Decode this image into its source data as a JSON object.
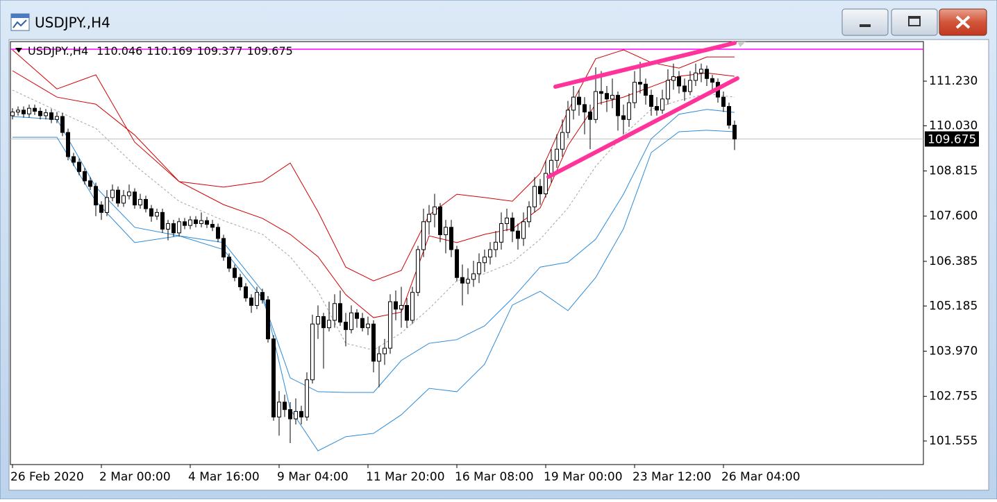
{
  "window": {
    "title": "USDJPY.,H4"
  },
  "chart_data": {
    "type": "candlestick",
    "title": "USDJPY.,H4",
    "ylim": [
      100.921,
      112.293
    ],
    "yticks": [
      {
        "value": 111.23,
        "label": "111.230"
      },
      {
        "value": 110.03,
        "label": "110.030"
      },
      108.815,
      {
        "value": 107.6,
        "label": "107.600"
      },
      106.385,
      105.185,
      {
        "value": 103.97,
        "label": "103.970"
      },
      102.755,
      101.555
    ],
    "xticks": [
      {
        "value": 0,
        "label": "26 Feb 2020"
      },
      {
        "value": 16,
        "label": "2 Mar 00:00"
      },
      {
        "value": 32,
        "label": "4 Mar 16:00"
      },
      {
        "value": 48,
        "label": "9 Mar 04:00"
      },
      {
        "value": 64,
        "label": "11 Mar 20:00"
      },
      {
        "value": 80,
        "label": "16 Mar 08:00"
      },
      {
        "value": 96,
        "label": "19 Mar 00:00"
      },
      {
        "value": 112,
        "label": "23 Mar 12:00"
      },
      {
        "value": 128,
        "label": "26 Mar 04:00"
      }
    ],
    "up_color": "#ffffff",
    "down_color": "#000000",
    "candles": [
      [
        110.3,
        110.5,
        110.2,
        110.4
      ],
      [
        110.4,
        110.55,
        110.3,
        110.45
      ],
      [
        110.45,
        110.55,
        110.25,
        110.35
      ],
      [
        110.35,
        110.6,
        110.25,
        110.5
      ],
      [
        110.5,
        110.6,
        110.32,
        110.42
      ],
      [
        110.42,
        110.52,
        110.2,
        110.3
      ],
      [
        110.3,
        110.48,
        110.2,
        110.38
      ],
      [
        110.38,
        110.48,
        110.1,
        110.2
      ],
      [
        110.2,
        110.4,
        110.1,
        110.28
      ],
      [
        110.28,
        110.38,
        109.75,
        109.85
      ],
      [
        109.85,
        109.95,
        109.1,
        109.2
      ],
      [
        109.2,
        109.3,
        108.95,
        109.05
      ],
      [
        109.05,
        109.15,
        108.7,
        108.8
      ],
      [
        108.8,
        108.9,
        108.45,
        108.55
      ],
      [
        108.55,
        108.65,
        108.3,
        108.4
      ],
      [
        108.4,
        108.5,
        107.6,
        107.9
      ],
      [
        107.9,
        108.0,
        107.5,
        107.7
      ],
      [
        107.7,
        108.3,
        107.6,
        108.1
      ],
      [
        108.1,
        108.45,
        108.0,
        108.3
      ],
      [
        108.3,
        108.4,
        107.85,
        107.95
      ],
      [
        107.95,
        108.3,
        107.85,
        108.15
      ],
      [
        108.15,
        108.45,
        108.05,
        108.25
      ],
      [
        108.25,
        108.35,
        107.8,
        107.9
      ],
      [
        107.9,
        108.2,
        107.8,
        108.05
      ],
      [
        108.05,
        108.15,
        107.7,
        107.8
      ],
      [
        107.8,
        107.9,
        107.45,
        107.6
      ],
      [
        107.6,
        107.8,
        107.5,
        107.7
      ],
      [
        107.7,
        107.8,
        107.15,
        107.25
      ],
      [
        107.25,
        107.5,
        106.95,
        107.4
      ],
      [
        107.4,
        107.5,
        107.05,
        107.15
      ],
      [
        107.15,
        107.55,
        107.05,
        107.45
      ],
      [
        107.45,
        107.55,
        107.25,
        107.35
      ],
      [
        107.35,
        107.6,
        107.25,
        107.5
      ],
      [
        107.5,
        107.6,
        107.3,
        107.4
      ],
      [
        107.4,
        107.7,
        107.3,
        107.48
      ],
      [
        107.48,
        107.58,
        107.28,
        107.38
      ],
      [
        107.38,
        107.5,
        107.2,
        107.3
      ],
      [
        107.3,
        107.4,
        106.9,
        107.0
      ],
      [
        107.0,
        107.1,
        106.4,
        106.5
      ],
      [
        106.5,
        106.6,
        106.1,
        106.2
      ],
      [
        106.2,
        106.3,
        105.85,
        105.95
      ],
      [
        105.95,
        106.05,
        105.6,
        105.7
      ],
      [
        105.7,
        105.8,
        105.3,
        105.4
      ],
      [
        105.4,
        105.5,
        105.0,
        105.2
      ],
      [
        105.2,
        105.7,
        105.1,
        105.55
      ],
      [
        105.55,
        105.65,
        105.25,
        105.35
      ],
      [
        105.35,
        105.45,
        104.2,
        104.3
      ],
      [
        104.3,
        104.4,
        102.1,
        102.2
      ],
      [
        102.2,
        102.9,
        101.7,
        102.6
      ],
      [
        102.6,
        102.8,
        102.2,
        102.4
      ],
      [
        102.4,
        102.6,
        101.5,
        102.15
      ],
      [
        102.15,
        102.7,
        102.0,
        102.35
      ],
      [
        102.35,
        102.5,
        102.0,
        102.2
      ],
      [
        102.2,
        103.4,
        102.1,
        103.2
      ],
      [
        103.2,
        104.95,
        103.1,
        104.7
      ],
      [
        104.7,
        105.2,
        104.3,
        104.9
      ],
      [
        104.9,
        105.0,
        103.5,
        104.6
      ],
      [
        104.6,
        105.3,
        104.5,
        104.8
      ],
      [
        104.8,
        105.5,
        104.6,
        105.25
      ],
      [
        105.25,
        105.6,
        104.65,
        104.75
      ],
      [
        104.75,
        105.0,
        104.1,
        104.55
      ],
      [
        104.55,
        105.2,
        104.45,
        105.0
      ],
      [
        105.0,
        105.1,
        104.6,
        104.85
      ],
      [
        104.85,
        105.0,
        104.5,
        104.6
      ],
      [
        104.6,
        104.9,
        104.4,
        104.7
      ],
      [
        104.7,
        104.8,
        103.4,
        103.7
      ],
      [
        103.7,
        104.1,
        103.0,
        103.9
      ],
      [
        103.9,
        104.3,
        103.6,
        104.05
      ],
      [
        104.05,
        105.5,
        103.9,
        105.3
      ],
      [
        105.3,
        105.6,
        104.8,
        105.1
      ],
      [
        105.1,
        105.7,
        104.6,
        105.2
      ],
      [
        105.2,
        105.4,
        104.6,
        104.8
      ],
      [
        104.8,
        105.7,
        104.7,
        105.55
      ],
      [
        105.55,
        106.8,
        105.45,
        106.7
      ],
      [
        106.7,
        107.8,
        106.5,
        107.45
      ],
      [
        107.45,
        107.9,
        107.1,
        107.65
      ],
      [
        107.65,
        108.2,
        107.3,
        107.85
      ],
      [
        107.85,
        107.95,
        106.9,
        107.1
      ],
      [
        107.1,
        107.5,
        106.6,
        107.3
      ],
      [
        107.3,
        107.5,
        106.5,
        106.7
      ],
      [
        106.7,
        106.8,
        105.85,
        105.95
      ],
      [
        105.95,
        106.3,
        105.2,
        105.8
      ],
      [
        105.8,
        106.2,
        105.5,
        105.9
      ],
      [
        105.9,
        106.4,
        105.7,
        106.05
      ],
      [
        106.05,
        106.6,
        105.8,
        106.35
      ],
      [
        106.35,
        106.7,
        106.1,
        106.5
      ],
      [
        106.5,
        106.9,
        106.3,
        106.7
      ],
      [
        106.7,
        107.2,
        106.5,
        106.9
      ],
      [
        106.9,
        107.7,
        106.7,
        107.4
      ],
      [
        107.4,
        107.8,
        107.2,
        107.55
      ],
      [
        107.55,
        107.7,
        106.9,
        107.2
      ],
      [
        107.2,
        107.4,
        106.7,
        107.0
      ],
      [
        107.0,
        107.7,
        106.8,
        107.45
      ],
      [
        107.45,
        108.0,
        107.3,
        107.85
      ],
      [
        107.85,
        108.65,
        107.7,
        108.4
      ],
      [
        108.4,
        108.6,
        107.9,
        108.2
      ],
      [
        108.2,
        109.1,
        108.1,
        108.75
      ],
      [
        108.75,
        109.4,
        108.5,
        109.1
      ],
      [
        109.1,
        109.8,
        108.9,
        109.4
      ],
      [
        109.4,
        110.2,
        109.2,
        109.85
      ],
      [
        109.85,
        110.7,
        109.7,
        110.45
      ],
      [
        110.45,
        111.1,
        110.2,
        110.8
      ],
      [
        110.8,
        111.0,
        110.3,
        110.6
      ],
      [
        110.6,
        110.8,
        109.8,
        110.4
      ],
      [
        110.4,
        110.6,
        109.4,
        110.2
      ],
      [
        110.2,
        111.6,
        110.1,
        110.95
      ],
      [
        110.95,
        111.5,
        110.6,
        110.9
      ],
      [
        110.9,
        111.1,
        110.4,
        110.75
      ],
      [
        110.75,
        111.3,
        110.5,
        110.85
      ],
      [
        110.85,
        110.95,
        109.9,
        110.3
      ],
      [
        110.3,
        110.6,
        109.8,
        110.2
      ],
      [
        110.2,
        110.9,
        110.0,
        110.65
      ],
      [
        110.65,
        111.5,
        110.5,
        111.2
      ],
      [
        111.2,
        111.75,
        110.9,
        111.15
      ],
      [
        111.15,
        111.3,
        110.6,
        110.85
      ],
      [
        110.85,
        111.0,
        110.3,
        110.55
      ],
      [
        110.55,
        110.8,
        110.3,
        110.45
      ],
      [
        110.45,
        111.0,
        110.35,
        110.75
      ],
      [
        110.75,
        111.55,
        110.6,
        111.25
      ],
      [
        111.25,
        111.7,
        111.0,
        111.35
      ],
      [
        111.35,
        111.5,
        110.9,
        111.1
      ],
      [
        111.1,
        111.3,
        110.7,
        110.95
      ],
      [
        110.95,
        111.5,
        110.85,
        111.25
      ],
      [
        111.25,
        111.7,
        111.1,
        111.45
      ],
      [
        111.45,
        111.7,
        111.2,
        111.55
      ],
      [
        111.55,
        111.65,
        111.1,
        111.3
      ],
      [
        111.3,
        111.4,
        110.95,
        111.2
      ],
      [
        111.2,
        111.3,
        110.65,
        110.8
      ],
      [
        110.8,
        110.95,
        110.4,
        110.55
      ],
      [
        110.55,
        110.65,
        109.95,
        110.046
      ],
      [
        110.046,
        110.169,
        109.377,
        109.675
      ]
    ],
    "bands_x": [
      0,
      8,
      15,
      22,
      30,
      38,
      45,
      50,
      55,
      60,
      65,
      70,
      75,
      80,
      85,
      90,
      95,
      100,
      105,
      110,
      115,
      120,
      125,
      130
    ],
    "bands": [
      {
        "color": "#d00000",
        "values": [
          112.07,
          111.02,
          111.4,
          109.59,
          108.53,
          108.38,
          108.53,
          109.03,
          107.72,
          106.23,
          105.86,
          106.14,
          107.63,
          108.19,
          108.1,
          108.0,
          108.75,
          110.43,
          111.83,
          112.07,
          111.73,
          111.58,
          111.88,
          111.88
        ]
      },
      {
        "color": "#d00000",
        "values": [
          111.51,
          110.8,
          110.61,
          109.78,
          108.53,
          107.91,
          107.54,
          107.11,
          106.51,
          105.49,
          104.87,
          105.02,
          107.07,
          106.89,
          107.11,
          107.26,
          107.82,
          109.5,
          110.61,
          110.8,
          111.08,
          111.36,
          111.45,
          111.36
        ]
      },
      {
        "color": "#a0a0a0",
        "dash": true,
        "values": [
          110.99,
          110.43,
          109.96,
          108.97,
          108.0,
          107.48,
          107.11,
          106.51,
          105.58,
          104.18,
          104.0,
          104.46,
          105.11,
          105.86,
          106.05,
          106.36,
          106.98,
          107.82,
          108.94,
          109.78,
          110.47,
          110.71,
          110.89,
          110.8
        ]
      },
      {
        "color": "#2a8ad8",
        "values": [
          110.28,
          110.2,
          108.38,
          107.3,
          107.07,
          106.7,
          105.39,
          103.25,
          102.88,
          102.86,
          102.86,
          103.72,
          104.18,
          104.28,
          104.65,
          105.39,
          106.23,
          106.36,
          106.98,
          108.19,
          109.68,
          110.34,
          110.47,
          110.39
        ]
      },
      {
        "color": "#2a8ad8",
        "values": [
          109.72,
          109.72,
          108.0,
          106.89,
          107.07,
          106.89,
          105.58,
          102.41,
          101.29,
          101.67,
          101.76,
          102.26,
          102.97,
          102.88,
          103.62,
          105.21,
          105.58,
          105.06,
          105.95,
          107.26,
          109.31,
          109.87,
          109.91,
          109.87
        ]
      }
    ],
    "hlines": [
      {
        "value": 112.088,
        "color": "#ff00ff"
      }
    ],
    "last_line_color": "#c0c0c0"
  }
}
